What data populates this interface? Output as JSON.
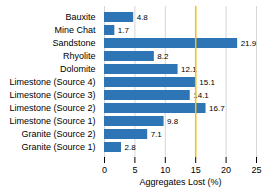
{
  "chart_data": {
    "type": "bar",
    "orientation": "horizontal",
    "categories": [
      "Granite (Source 1)",
      "Granite (Source 2)",
      "Limestone (Source 1)",
      "Limestone (Source 2)",
      "Limestone (Source 3)",
      "Limestone (Source 4)",
      "Dolomite",
      "Rhyolite",
      "Sandstone",
      "Mine Chat",
      "Bauxite"
    ],
    "values": [
      2.8,
      7.1,
      9.8,
      16.7,
      14.1,
      15.1,
      12.1,
      8.2,
      21.9,
      1.7,
      4.8
    ],
    "color": "#2E75B6",
    "xlabel": "Aggregates Lost (%)",
    "xlim": [
      0,
      25
    ],
    "xticks": [
      0,
      5,
      10,
      15,
      20,
      25
    ],
    "grid": true,
    "data_labels": true,
    "reference_line": {
      "x": 15,
      "color": "#FFC000"
    }
  }
}
